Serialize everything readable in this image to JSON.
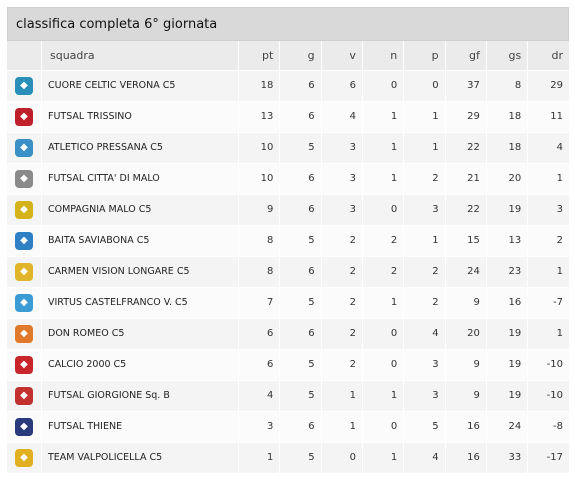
{
  "title": "classifica completa 6° giornata",
  "headers": {
    "squadra": "squadra",
    "pt": "pt",
    "g": "g",
    "v": "v",
    "n": "n",
    "p": "p",
    "gf": "gf",
    "gs": "gs",
    "dr": "dr"
  },
  "rows": [
    {
      "name": "CUORE CELTIC VERONA C5",
      "pt": "18",
      "g": "6",
      "v": "6",
      "n": "0",
      "p": "0",
      "gf": "37",
      "gs": "8",
      "dr": "29",
      "logo_icon": "cuore-celtic-logo",
      "logo_color": "#2a8fb8"
    },
    {
      "name": "FUTSAL TRISSINO",
      "pt": "13",
      "g": "6",
      "v": "4",
      "n": "1",
      "p": "1",
      "gf": "29",
      "gs": "18",
      "dr": "11",
      "logo_icon": "futsal-trissino-logo",
      "logo_color": "#c0202b"
    },
    {
      "name": "ATLETICO PRESSANA C5",
      "pt": "10",
      "g": "5",
      "v": "3",
      "n": "1",
      "p": "1",
      "gf": "22",
      "gs": "18",
      "dr": "4",
      "logo_icon": "atletico-pressana-logo",
      "logo_color": "#3a8fc7"
    },
    {
      "name": "FUTSAL CITTA' DI MALO",
      "pt": "10",
      "g": "6",
      "v": "3",
      "n": "1",
      "p": "2",
      "gf": "21",
      "gs": "20",
      "dr": "1",
      "logo_icon": "futsal-malo-logo",
      "logo_color": "#8a8a8a"
    },
    {
      "name": "COMPAGNIA MALO C5",
      "pt": "9",
      "g": "6",
      "v": "3",
      "n": "0",
      "p": "3",
      "gf": "22",
      "gs": "19",
      "dr": "3",
      "logo_icon": "compagnia-malo-logo",
      "logo_color": "#d4b21a"
    },
    {
      "name": "BAITA SAVIABONA C5",
      "pt": "8",
      "g": "5",
      "v": "2",
      "n": "2",
      "p": "1",
      "gf": "15",
      "gs": "13",
      "dr": "2",
      "logo_icon": "baita-saviabona-logo",
      "logo_color": "#2f7fc4"
    },
    {
      "name": "CARMEN VISION LONGARE C5",
      "pt": "8",
      "g": "6",
      "v": "2",
      "n": "2",
      "p": "2",
      "gf": "24",
      "gs": "23",
      "dr": "1",
      "logo_icon": "carmen-vision-logo",
      "logo_color": "#e0b52a"
    },
    {
      "name": "VIRTUS CASTELFRANCO V. C5",
      "pt": "7",
      "g": "5",
      "v": "2",
      "n": "1",
      "p": "2",
      "gf": "9",
      "gs": "16",
      "dr": "-7",
      "logo_icon": "virtus-castelfranco-logo",
      "logo_color": "#3b9bd4"
    },
    {
      "name": "DON ROMEO C5",
      "pt": "6",
      "g": "6",
      "v": "2",
      "n": "0",
      "p": "4",
      "gf": "20",
      "gs": "19",
      "dr": "1",
      "logo_icon": "don-romeo-logo",
      "logo_color": "#e07a2a"
    },
    {
      "name": "CALCIO 2000 C5",
      "pt": "6",
      "g": "5",
      "v": "2",
      "n": "0",
      "p": "3",
      "gf": "9",
      "gs": "19",
      "dr": "-10",
      "logo_icon": "calcio-2000-logo",
      "logo_color": "#c8262b"
    },
    {
      "name": "FUTSAL GIORGIONE Sq. B",
      "pt": "4",
      "g": "5",
      "v": "1",
      "n": "1",
      "p": "3",
      "gf": "9",
      "gs": "19",
      "dr": "-10",
      "logo_icon": "futsal-giorgione-logo",
      "logo_color": "#c43030"
    },
    {
      "name": "FUTSAL THIENE",
      "pt": "3",
      "g": "6",
      "v": "1",
      "n": "0",
      "p": "5",
      "gf": "16",
      "gs": "24",
      "dr": "-8",
      "logo_icon": "futsal-thiene-logo",
      "logo_color": "#2b3a7a"
    },
    {
      "name": "TEAM VALPOLICELLA C5",
      "pt": "1",
      "g": "5",
      "v": "0",
      "n": "1",
      "p": "4",
      "gf": "16",
      "gs": "33",
      "dr": "-17",
      "logo_icon": "team-valpolicella-logo",
      "logo_color": "#e0b020"
    }
  ]
}
